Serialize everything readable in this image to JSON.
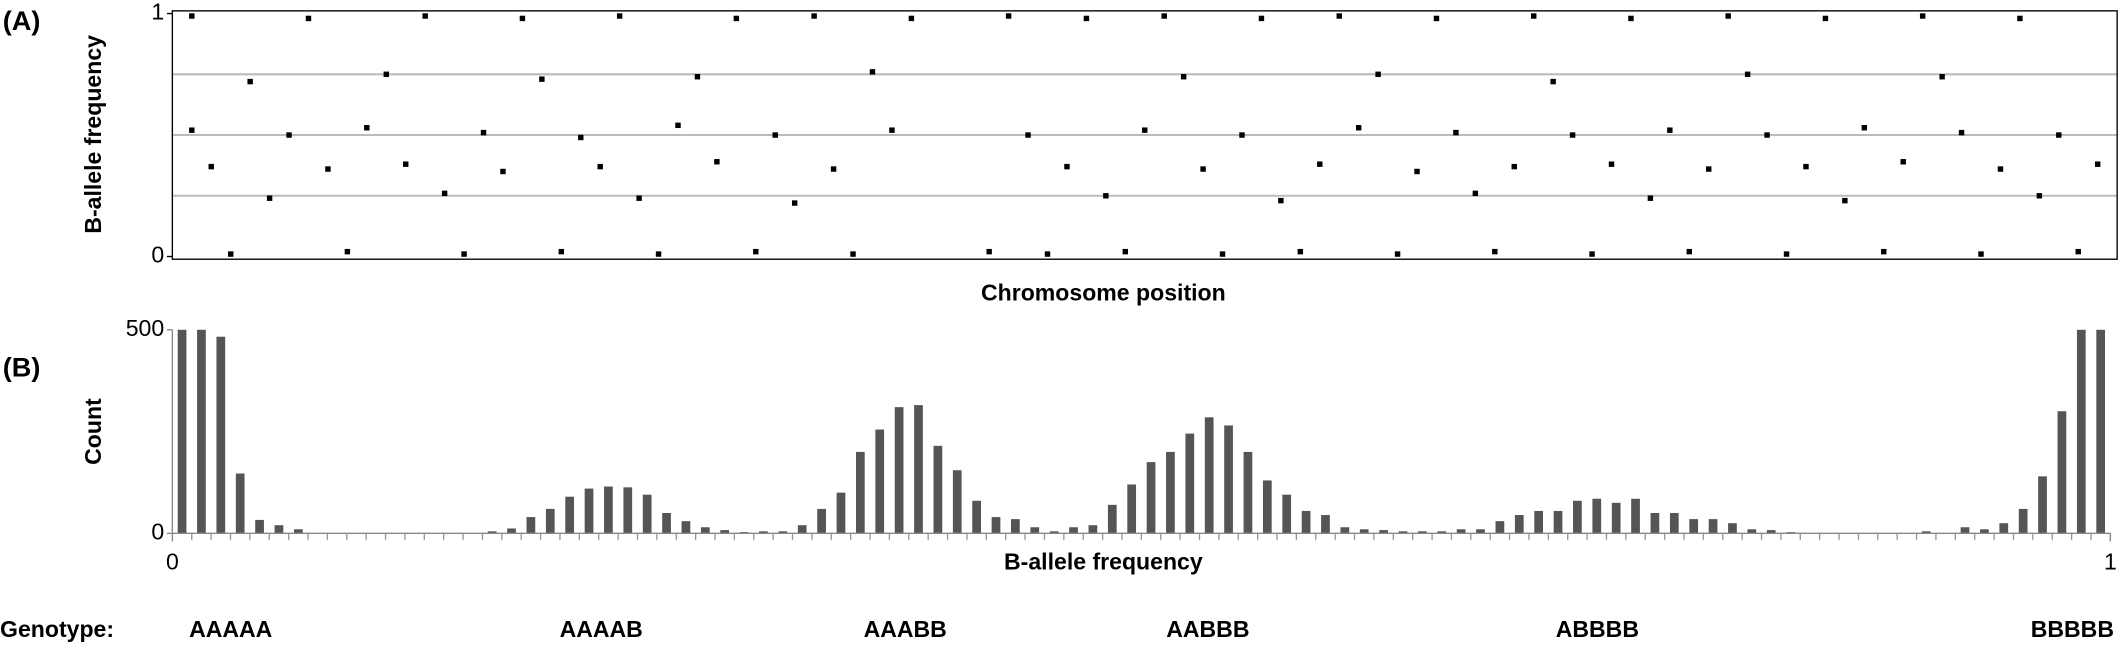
{
  "chart_data": [
    {
      "type": "scatter",
      "panel": "(A)",
      "xlabel": "Chromosome position",
      "ylabel": "B-allele frequency",
      "xlim": [
        0,
        1
      ],
      "ylim": [
        0,
        1
      ],
      "yticks": [
        0,
        1
      ],
      "grid_lines": [
        0.25,
        0.5,
        0.75
      ],
      "color": "#000000",
      "x": [
        0.01,
        0.01,
        0.02,
        0.03,
        0.04,
        0.05,
        0.06,
        0.07,
        0.08,
        0.09,
        0.1,
        0.11,
        0.12,
        0.13,
        0.14,
        0.15,
        0.16,
        0.17,
        0.18,
        0.19,
        0.2,
        0.21,
        0.22,
        0.23,
        0.24,
        0.25,
        0.26,
        0.27,
        0.28,
        0.29,
        0.3,
        0.31,
        0.32,
        0.33,
        0.34,
        0.35,
        0.36,
        0.37,
        0.38,
        0.42,
        0.43,
        0.44,
        0.45,
        0.46,
        0.47,
        0.48,
        0.49,
        0.5,
        0.51,
        0.52,
        0.53,
        0.54,
        0.55,
        0.56,
        0.57,
        0.58,
        0.59,
        0.6,
        0.61,
        0.62,
        0.63,
        0.64,
        0.65,
        0.66,
        0.67,
        0.68,
        0.69,
        0.7,
        0.71,
        0.72,
        0.73,
        0.74,
        0.75,
        0.76,
        0.77,
        0.78,
        0.79,
        0.8,
        0.81,
        0.82,
        0.83,
        0.84,
        0.85,
        0.86,
        0.87,
        0.88,
        0.89,
        0.9,
        0.91,
        0.92,
        0.93,
        0.94,
        0.95,
        0.96,
        0.97,
        0.98,
        0.99
      ],
      "values": [
        0.99,
        0.52,
        0.37,
        0.01,
        0.72,
        0.24,
        0.5,
        0.98,
        0.36,
        0.02,
        0.53,
        0.75,
        0.38,
        0.99,
        0.26,
        0.01,
        0.51,
        0.35,
        0.98,
        0.73,
        0.02,
        0.49,
        0.37,
        0.99,
        0.24,
        0.01,
        0.54,
        0.74,
        0.39,
        0.98,
        0.02,
        0.5,
        0.22,
        0.99,
        0.36,
        0.01,
        0.76,
        0.52,
        0.98,
        0.02,
        0.99,
        0.5,
        0.01,
        0.37,
        0.98,
        0.25,
        0.02,
        0.52,
        0.99,
        0.74,
        0.36,
        0.01,
        0.5,
        0.98,
        0.23,
        0.02,
        0.38,
        0.99,
        0.53,
        0.75,
        0.01,
        0.35,
        0.98,
        0.51,
        0.26,
        0.02,
        0.37,
        0.99,
        0.72,
        0.5,
        0.01,
        0.38,
        0.98,
        0.24,
        0.52,
        0.02,
        0.36,
        0.99,
        0.75,
        0.5,
        0.01,
        0.37,
        0.98,
        0.23,
        0.53,
        0.02,
        0.39,
        0.99,
        0.74,
        0.51,
        0.01,
        0.36,
        0.98,
        0.25,
        0.5,
        0.02,
        0.38
      ]
    },
    {
      "type": "histogram",
      "panel": "(B)",
      "xlabel": "B-allele frequency",
      "ylabel": "Count",
      "xlim": [
        0,
        1
      ],
      "ylim": [
        0,
        500
      ],
      "xticks": [
        0,
        1
      ],
      "yticks": [
        0,
        500
      ],
      "color": "#555555",
      "bins": [
        0,
        0.01,
        0.02,
        0.03,
        0.04,
        0.05,
        0.06,
        0.07,
        0.08,
        0.09,
        0.1,
        0.11,
        0.12,
        0.13,
        0.14,
        0.15,
        0.16,
        0.17,
        0.18,
        0.19,
        0.2,
        0.21,
        0.22,
        0.23,
        0.24,
        0.25,
        0.26,
        0.27,
        0.28,
        0.29,
        0.3,
        0.31,
        0.32,
        0.33,
        0.34,
        0.35,
        0.36,
        0.37,
        0.38,
        0.39,
        0.4,
        0.41,
        0.42,
        0.43,
        0.44,
        0.45,
        0.46,
        0.47,
        0.48,
        0.49,
        0.5,
        0.51,
        0.52,
        0.53,
        0.54,
        0.55,
        0.56,
        0.57,
        0.58,
        0.59,
        0.6,
        0.61,
        0.62,
        0.63,
        0.64,
        0.65,
        0.66,
        0.67,
        0.68,
        0.69,
        0.7,
        0.71,
        0.72,
        0.73,
        0.74,
        0.75,
        0.76,
        0.77,
        0.78,
        0.79,
        0.8,
        0.81,
        0.82,
        0.83,
        0.84,
        0.85,
        0.86,
        0.87,
        0.88,
        0.89,
        0.9,
        0.91,
        0.92,
        0.93,
        0.94,
        0.95,
        0.96,
        0.97,
        0.98,
        0.99,
        1
      ],
      "values": [
        500,
        500,
        483,
        147,
        33,
        20,
        10,
        0,
        0,
        0,
        0,
        0,
        0,
        0,
        0,
        0,
        5,
        12,
        40,
        60,
        90,
        110,
        115,
        113,
        95,
        50,
        30,
        15,
        8,
        3,
        5,
        5,
        20,
        60,
        100,
        200,
        255,
        310,
        315,
        215,
        155,
        80,
        40,
        35,
        15,
        5,
        15,
        20,
        70,
        120,
        175,
        200,
        245,
        285,
        265,
        200,
        130,
        95,
        55,
        45,
        15,
        10,
        8,
        5,
        5,
        5,
        10,
        10,
        30,
        45,
        55,
        55,
        80,
        85,
        75,
        85,
        50,
        50,
        35,
        35,
        25,
        10,
        8,
        3,
        0,
        0,
        0,
        0,
        0,
        0,
        5,
        0,
        15,
        10,
        25,
        60,
        140,
        300,
        500,
        500
      ],
      "genotype_title": "Genotype:",
      "genotypes": [
        "AAAAA",
        "AAAAB",
        "AAABB",
        "AABBB",
        "ABBBB",
        "BBBBB"
      ]
    }
  ]
}
